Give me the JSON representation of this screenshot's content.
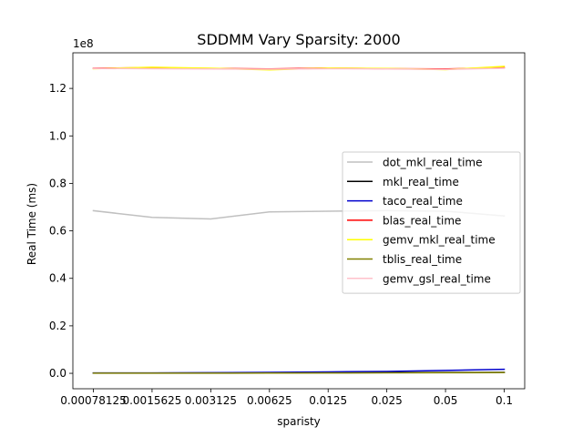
{
  "chart_data": {
    "type": "line",
    "title": "SDDMM Vary Sparsity: 2000",
    "xlabel": "sparisty",
    "ylabel": "Real Time (ms)",
    "y_offset_label": "1e8",
    "y_scale": 100000000,
    "categories": [
      "0.00078125",
      "0.0015625",
      "0.003125",
      "0.00625",
      "0.0125",
      "0.025",
      "0.05",
      "0.1"
    ],
    "ylim": [
      -6500000,
      135000000
    ],
    "yticks": [
      0,
      20000000,
      40000000,
      60000000,
      80000000,
      100000000,
      120000000
    ],
    "ytick_labels": [
      "0.0",
      "0.2",
      "0.4",
      "0.6",
      "0.8",
      "1.0",
      "1.2"
    ],
    "grid": false,
    "legend_position": "center-right",
    "series": [
      {
        "name": "dot_mkl_real_time",
        "color": "#c0c0c0",
        "values": [
          68500000,
          65700000,
          65000000,
          68000000,
          68300000,
          68500000,
          68300000,
          66300000
        ]
      },
      {
        "name": "mkl_real_time",
        "color": "#000000",
        "values": [
          100000,
          100000,
          150000,
          200000,
          250000,
          300000,
          350000,
          400000
        ]
      },
      {
        "name": "taco_real_time",
        "color": "#0000cd",
        "values": [
          150000,
          150000,
          250000,
          400000,
          600000,
          800000,
          1200000,
          1700000
        ]
      },
      {
        "name": "blas_real_time",
        "color": "#ff0000",
        "values": [
          128500000,
          128700000,
          128400000,
          128200000,
          128600000,
          128300000,
          128200000,
          128700000
        ]
      },
      {
        "name": "gemv_mkl_real_time",
        "color": "#ffff00",
        "values": [
          128300000,
          128900000,
          128500000,
          127800000,
          128600000,
          128400000,
          127900000,
          129300000
        ]
      },
      {
        "name": "tblis_real_time",
        "color": "#808000",
        "values": [
          50000,
          50000,
          80000,
          100000,
          150000,
          200000,
          250000,
          300000
        ]
      },
      {
        "name": "gemv_gsl_real_time",
        "color": "#ffc0cb",
        "values": [
          128400000,
          128300000,
          128200000,
          128100000,
          128300000,
          128200000,
          128000000,
          128500000
        ]
      }
    ]
  }
}
